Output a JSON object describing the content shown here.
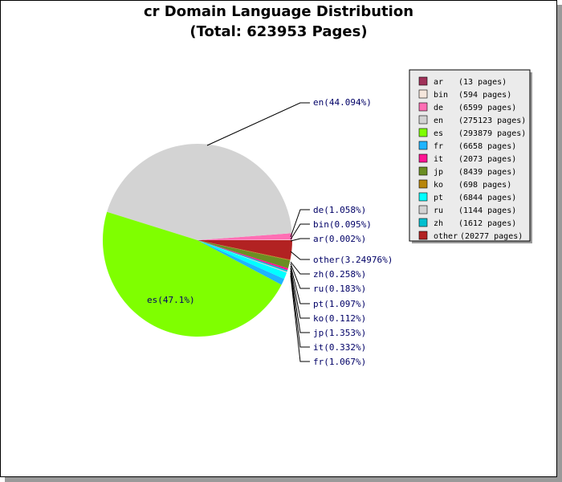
{
  "chart_data": {
    "type": "pie",
    "title": "cr Domain Language Distribution",
    "subtitle": "(Total: 623953 Pages)",
    "slices": [
      {
        "name": "ar",
        "pages": 13,
        "pct": "0.002%",
        "legend": "(13 pages)",
        "color": "#a0325a"
      },
      {
        "name": "bin",
        "pages": 594,
        "pct": "0.095%",
        "legend": "(594 pages)",
        "color": "#f5e6dc"
      },
      {
        "name": "de",
        "pages": 6599,
        "pct": "1.058%",
        "legend": "(6599 pages)",
        "color": "#ff6eb4"
      },
      {
        "name": "en",
        "pages": 275123,
        "pct": "44.094%",
        "legend": "(275123 pages)",
        "color": "#d3d3d3"
      },
      {
        "name": "es",
        "pages": 293879,
        "pct": "47.1%",
        "legend": "(293879 pages)",
        "color": "#7fff00"
      },
      {
        "name": "fr",
        "pages": 6658,
        "pct": "1.067%",
        "legend": "(6658 pages)",
        "color": "#1eb4ff"
      },
      {
        "name": "it",
        "pages": 2073,
        "pct": "0.332%",
        "legend": "(2073 pages)",
        "color": "#ff1493"
      },
      {
        "name": "jp",
        "pages": 8439,
        "pct": "1.353%",
        "legend": "(8439 pages)",
        "color": "#6b8e23"
      },
      {
        "name": "ko",
        "pages": 698,
        "pct": "0.112%",
        "legend": "(698 pages)",
        "color": "#b8860b"
      },
      {
        "name": "pt",
        "pages": 6844,
        "pct": "1.097%",
        "legend": "(6844 pages)",
        "color": "#00ffff"
      },
      {
        "name": "ru",
        "pages": 1144,
        "pct": "0.183%",
        "legend": "(1144 pages)",
        "color": "#d3d3d3"
      },
      {
        "name": "zh",
        "pages": 1612,
        "pct": "0.258%",
        "legend": "(1612 pages)",
        "color": "#00bfcf"
      },
      {
        "name": "other",
        "pages": 20277,
        "pct": "3.24976%",
        "legend": "(20277 pages)",
        "color": "#b22222"
      }
    ],
    "legend_position": "top-right"
  }
}
